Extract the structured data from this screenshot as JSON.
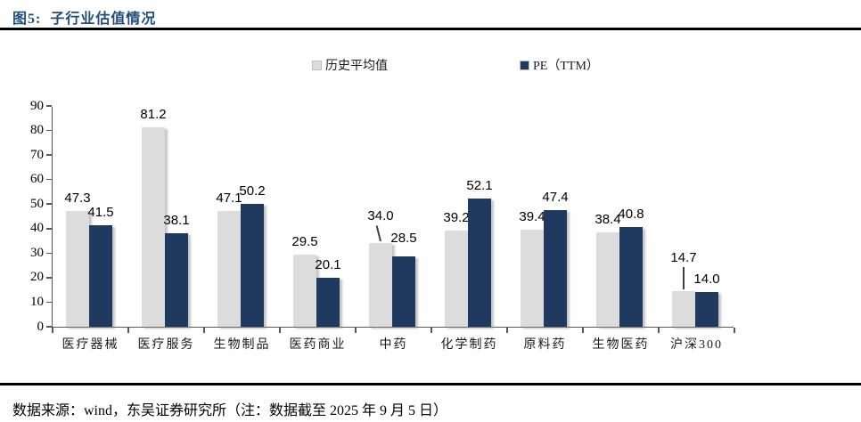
{
  "header": {
    "title": "图5:  子行业估值情况"
  },
  "colors": {
    "title_navy": "#1f4e79",
    "bar_gray": "#dcdcdc",
    "bar_navy": "#1f3a5e",
    "axis": "#595959",
    "rule": "#000000"
  },
  "chart_data": {
    "type": "bar",
    "title": "",
    "xlabel": "",
    "ylabel": "",
    "ylim": [
      0,
      90
    ],
    "ytick_step": 10,
    "grid": false,
    "legend_position": "top-center",
    "categories": [
      "医疗器械",
      "医疗服务",
      "生物制品",
      "医药商业",
      "中药",
      "化学制药",
      "原料药",
      "生物医药",
      "沪深300"
    ],
    "series": [
      {
        "name": "历史平均值",
        "color": "#dcdcdc",
        "values": [
          47.3,
          81.2,
          47.1,
          29.5,
          34.0,
          39.2,
          39.4,
          38.4,
          14.7
        ]
      },
      {
        "name": "PE（TTM）",
        "color": "#1f3a5e",
        "values": [
          41.5,
          38.1,
          50.2,
          20.1,
          28.5,
          52.1,
          47.4,
          40.8,
          14.0
        ]
      }
    ],
    "label_annotations": [
      {
        "category_index": 4,
        "series_index": 0,
        "lift": 16,
        "leader": "diagonal"
      },
      {
        "category_index": 4,
        "series_index": 1,
        "lift": 6,
        "leader": null
      },
      {
        "category_index": 8,
        "series_index": 0,
        "lift": 23,
        "leader": "vertical"
      }
    ]
  },
  "footer": {
    "source": "数据来源：wind，东吴证券研究所（注：数据截至 2025 年 9 月 5 日）"
  }
}
